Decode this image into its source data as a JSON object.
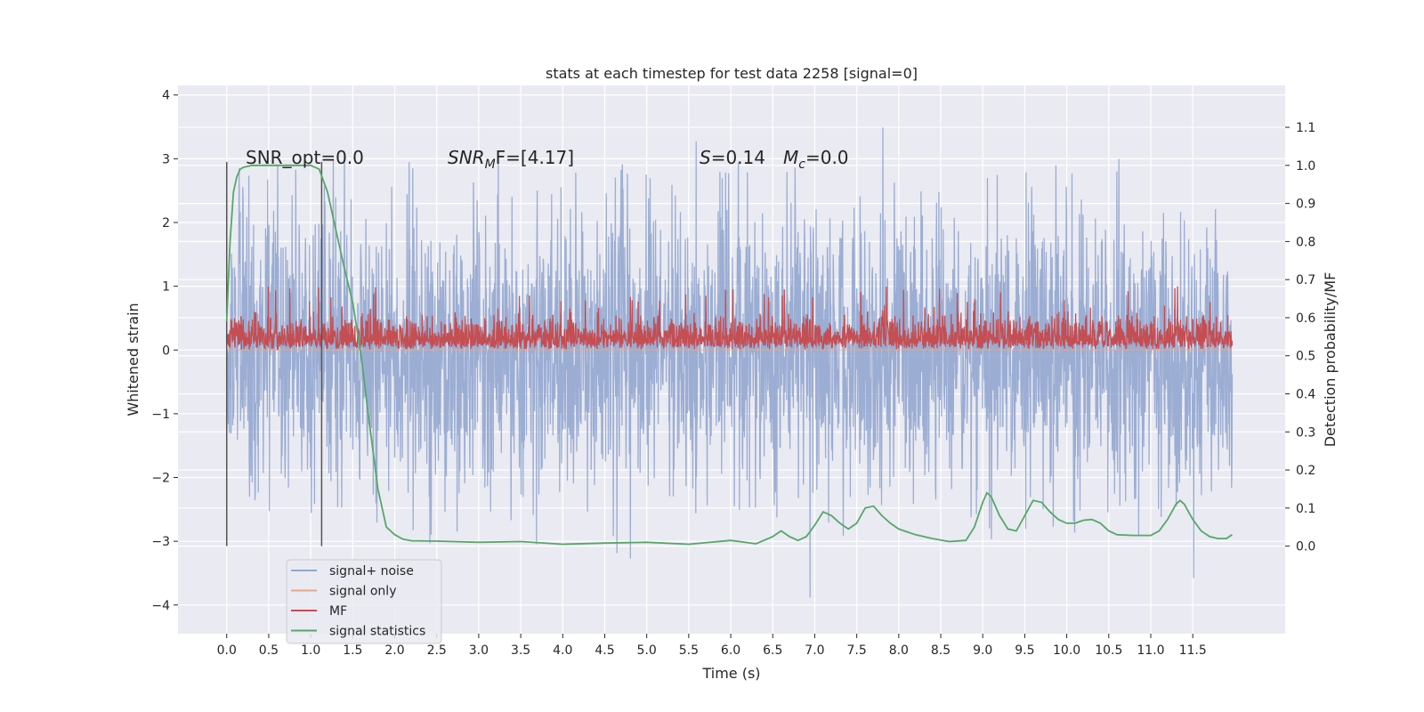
{
  "chart_data": {
    "type": "line",
    "title": "stats at each timestep for test data 2258 [signal=0]",
    "xlabel": "Time (s)",
    "ylabel": "Whitened strain",
    "y2label": "Detection probability/MF",
    "xlim": [
      -0.58,
      12.6
    ],
    "ylim": [
      -4.45,
      4.15
    ],
    "y2lim": [
      -0.23,
      1.21
    ],
    "x_ticks": [
      "0.0",
      "0.5",
      "1.0",
      "1.5",
      "2.0",
      "2.5",
      "3.0",
      "3.5",
      "4.0",
      "4.5",
      "5.0",
      "5.5",
      "6.0",
      "6.5",
      "7.0",
      "7.5",
      "8.0",
      "8.5",
      "9.0",
      "9.5",
      "10.0",
      "10.5",
      "11.0",
      "11.5"
    ],
    "x_tick_values": [
      0,
      0.5,
      1,
      1.5,
      2,
      2.5,
      3,
      3.5,
      4,
      4.5,
      5,
      5.5,
      6,
      6.5,
      7,
      7.5,
      8,
      8.5,
      9,
      9.5,
      10,
      10.5,
      11,
      11.5
    ],
    "y_ticks": [
      "−4",
      "−3",
      "−2",
      "−1",
      "0",
      "1",
      "2",
      "3",
      "4"
    ],
    "y_tick_values": [
      -4,
      -3,
      -2,
      -1,
      0,
      1,
      2,
      3,
      4
    ],
    "y2_ticks": [
      "0.0",
      "0.1",
      "0.2",
      "0.3",
      "0.4",
      "0.5",
      "0.6",
      "0.7",
      "0.8",
      "0.9",
      "1.0",
      "1.1"
    ],
    "y2_tick_values": [
      0,
      0.1,
      0.2,
      0.3,
      0.4,
      0.5,
      0.6,
      0.7,
      0.8,
      0.9,
      1.0,
      1.1
    ],
    "grid": true,
    "legend_placement": "lower-left",
    "annotations": {
      "snr_opt": "SNR_opt=0.0",
      "snr_mf_prefix": "SNR",
      "snr_mf_sub": "M",
      "snr_mf_suffix": "F=[4.17]",
      "s_label": "S",
      "s_value": "=0.14",
      "mc_label": "M",
      "mc_sub": "c",
      "mc_value": "=0.0"
    },
    "vlines_x": [
      0.0,
      1.13
    ],
    "vline_y2_range": [
      0.0,
      1.0
    ],
    "series": [
      {
        "name": "signal+ noise",
        "color": "#92a6cf",
        "axis": "left",
        "x_range": [
          0.0,
          11.97
        ],
        "samples": 3000,
        "typical_abs": 1.1,
        "peak_max": 3.75,
        "peak_min": -4.1
      },
      {
        "name": "signal only",
        "color": "#e8a886",
        "axis": "left",
        "x": [
          0.0,
          11.97
        ],
        "y": [
          0.0,
          0.0
        ]
      },
      {
        "name": "MF",
        "color": "#c44e52",
        "axis": "left",
        "x_range": [
          0.0,
          11.97
        ],
        "samples": 3000,
        "baseline": 0.0,
        "typical_high": 0.45,
        "peak_max": 1.0
      },
      {
        "name": "signal statistics",
        "color": "#55a868",
        "axis": "right",
        "x": [
          0.0,
          0.04,
          0.08,
          0.12,
          0.16,
          0.2,
          0.3,
          0.5,
          0.7,
          0.9,
          1.0,
          1.1,
          1.2,
          1.3,
          1.4,
          1.5,
          1.6,
          1.7,
          1.8,
          1.9,
          2.0,
          2.1,
          2.2,
          2.5,
          3.0,
          3.5,
          4.0,
          4.5,
          5.0,
          5.5,
          6.0,
          6.3,
          6.5,
          6.6,
          6.7,
          6.8,
          6.9,
          7.0,
          7.1,
          7.2,
          7.3,
          7.4,
          7.5,
          7.6,
          7.7,
          7.8,
          7.9,
          8.0,
          8.2,
          8.4,
          8.6,
          8.8,
          8.9,
          9.0,
          9.05,
          9.1,
          9.2,
          9.3,
          9.4,
          9.5,
          9.6,
          9.7,
          9.8,
          9.9,
          10.0,
          10.1,
          10.2,
          10.3,
          10.4,
          10.5,
          10.6,
          10.8,
          11.0,
          11.1,
          11.2,
          11.3,
          11.35,
          11.4,
          11.5,
          11.6,
          11.7,
          11.8,
          11.9,
          11.97
        ],
        "y": [
          0.59,
          0.8,
          0.93,
          0.97,
          0.99,
          0.995,
          1.0,
          1.0,
          1.0,
          1.0,
          1.0,
          0.99,
          0.93,
          0.83,
          0.73,
          0.64,
          0.5,
          0.32,
          0.15,
          0.05,
          0.03,
          0.018,
          0.014,
          0.013,
          0.01,
          0.012,
          0.005,
          0.008,
          0.01,
          0.005,
          0.015,
          0.006,
          0.025,
          0.04,
          0.025,
          0.015,
          0.025,
          0.055,
          0.09,
          0.08,
          0.06,
          0.045,
          0.06,
          0.1,
          0.105,
          0.08,
          0.06,
          0.045,
          0.03,
          0.02,
          0.012,
          0.015,
          0.05,
          0.115,
          0.14,
          0.13,
          0.08,
          0.045,
          0.04,
          0.08,
          0.12,
          0.115,
          0.09,
          0.07,
          0.06,
          0.06,
          0.068,
          0.07,
          0.06,
          0.04,
          0.03,
          0.028,
          0.028,
          0.04,
          0.07,
          0.11,
          0.12,
          0.11,
          0.07,
          0.04,
          0.025,
          0.02,
          0.02,
          0.03
        ]
      }
    ]
  }
}
